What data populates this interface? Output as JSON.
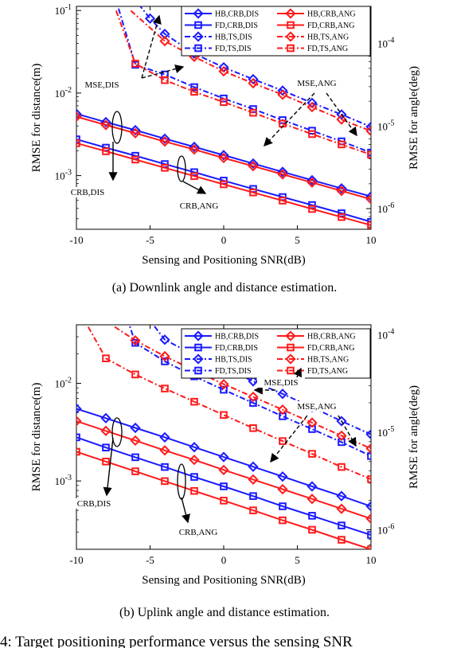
{
  "figure_caption": "4: Target positioning performance versus the sensing SNR",
  "colors": {
    "blue": "#1a1aff",
    "red": "#ff1a1a",
    "black": "#000000"
  },
  "chart_data": [
    {
      "id": "a",
      "type": "line",
      "caption": "(a)  Downlink angle and distance estimation.",
      "xlabel": "Sensing and Positioning SNR(dB)",
      "ylabel_left": "RMSE for distance(m)",
      "ylabel_right": "RMSE for angle(deg)",
      "xlim": [
        -10,
        10
      ],
      "x_ticks": [
        -10,
        -5,
        0,
        5,
        10
      ],
      "y_scale": "log",
      "ylim_left_log10": [
        -3.65,
        -0.95
      ],
      "ylim_right_log10": [
        -6.25,
        -3.55
      ],
      "yticks_left": [
        {
          "exp": -1,
          "label": "10",
          "sup": "-1"
        },
        {
          "exp": -2,
          "label": "10",
          "sup": "-2"
        },
        {
          "exp": -3,
          "label": "10",
          "sup": "-3"
        }
      ],
      "yticks_right": [
        {
          "exp": -4,
          "label": "10",
          "sup": "-4"
        },
        {
          "exp": -5,
          "label": "10",
          "sup": "-5"
        },
        {
          "exp": -6,
          "label": "10",
          "sup": "-6"
        }
      ],
      "legend": {
        "placement": "top-right",
        "left_column": [
          "HB,CRB,DIS",
          "FD,CRB,DIS",
          "HB,TS,DIS",
          "FD,TS,DIS"
        ],
        "right_column": [
          "HB,CRB,ANG",
          "FD,CRB,ANG",
          "HB,TS,ANG",
          "FD,TS,ANG"
        ]
      },
      "series": [
        {
          "name": "HB,CRB,DIS",
          "color": "blue",
          "marker": "diamond",
          "style": "solid",
          "axis": "left",
          "x": [
            -10,
            -8,
            -6,
            -4,
            -2,
            0,
            2,
            4,
            6,
            8,
            10
          ],
          "y": [
            0.0056,
            0.00445,
            0.00355,
            0.0028,
            0.00223,
            0.00177,
            0.0014,
            0.00111,
            0.00088,
            0.0007,
            0.00056
          ]
        },
        {
          "name": "FD,CRB,DIS",
          "color": "blue",
          "marker": "square",
          "style": "solid",
          "axis": "left",
          "x": [
            -10,
            -8,
            -6,
            -4,
            -2,
            0,
            2,
            4,
            6,
            8,
            10
          ],
          "y": [
            0.00275,
            0.00218,
            0.00174,
            0.00138,
            0.0011,
            0.00087,
            0.00069,
            0.00055,
            0.00044,
            0.00035,
            0.000275
          ]
        },
        {
          "name": "HB,TS,DIS",
          "color": "blue",
          "marker": "diamond",
          "style": "dashdot",
          "axis": "left",
          "x": [
            -6.8,
            -5,
            -4,
            -2,
            0,
            2,
            4,
            6,
            8,
            10
          ],
          "y": [
            0.2,
            0.08,
            0.052,
            0.03,
            0.0205,
            0.0147,
            0.0107,
            0.0076,
            0.0055,
            0.0039
          ]
        },
        {
          "name": "FD,TS,DIS",
          "color": "blue",
          "marker": "square",
          "style": "dashdot",
          "axis": "left",
          "x": [
            -7.6,
            -6,
            -4,
            -2,
            0,
            2,
            4,
            6,
            8,
            10
          ],
          "y": [
            0.2,
            0.022,
            0.0168,
            0.0118,
            0.0086,
            0.0064,
            0.0047,
            0.0035,
            0.0026,
            0.0019
          ]
        },
        {
          "name": "HB,CRB,ANG",
          "color": "red",
          "marker": "diamond",
          "style": "solid",
          "axis": "right",
          "x": [
            -10,
            -8,
            -6,
            -4,
            -2,
            0,
            2,
            4,
            6,
            8,
            10
          ],
          "y": [
            1.3e-05,
            1.03e-05,
            8.2e-06,
            6.5e-06,
            5.2e-06,
            4.1e-06,
            3.27e-06,
            2.6e-06,
            2.07e-06,
            1.64e-06,
            1.3e-06
          ]
        },
        {
          "name": "FD,CRB,ANG",
          "color": "red",
          "marker": "square",
          "style": "solid",
          "axis": "right",
          "x": [
            -10,
            -8,
            -6,
            -4,
            -2,
            0,
            2,
            4,
            6,
            8,
            10
          ],
          "y": [
            6.2e-06,
            4.95e-06,
            3.93e-06,
            3.12e-06,
            2.48e-06,
            1.97e-06,
            1.57e-06,
            1.25e-06,
            9.9e-07,
            7.9e-07,
            6.3e-07
          ]
        },
        {
          "name": "HB,TS,ANG",
          "color": "red",
          "marker": "diamond",
          "style": "dashdot",
          "axis": "right",
          "x": [
            -6.3,
            -4,
            -2,
            0,
            2,
            4,
            6,
            8,
            10
          ],
          "y": [
            0.00025,
            0.000107,
            6.9e-05,
            4.6e-05,
            3.3e-05,
            2.4e-05,
            1.7e-05,
            1.2e-05,
            8.7e-06
          ]
        },
        {
          "name": "FD,TS,ANG",
          "color": "red",
          "marker": "square",
          "style": "dashdot",
          "axis": "right",
          "x": [
            -7.3,
            -6,
            -4,
            -2,
            0,
            2,
            4,
            6,
            8,
            10
          ],
          "y": [
            0.00025,
            5.7e-05,
            3.6e-05,
            2.6e-05,
            1.95e-05,
            1.45e-05,
            1.07e-05,
            8e-06,
            6e-06,
            4.5e-06
          ]
        }
      ],
      "annotations": [
        "MSE,DIS",
        "MSE,ANG",
        "CRB,DIS",
        "CRB,ANG"
      ]
    },
    {
      "id": "b",
      "type": "line",
      "caption": "(b)  Uplink angle and distance estimation.",
      "xlabel": "Sensing and Positioning SNR(dB)",
      "ylabel_left": "RMSE for distance(m)",
      "ylabel_right": "RMSE for angle(deg)",
      "xlim": [
        -10,
        10
      ],
      "x_ticks": [
        -10,
        -5,
        0,
        5,
        10
      ],
      "y_scale": "log",
      "ylim_left_log10": [
        -3.7,
        -1.4
      ],
      "ylim_right_log10": [
        -6.2,
        -3.9
      ],
      "yticks_left": [
        {
          "exp": -2,
          "label": "10",
          "sup": "-2"
        },
        {
          "exp": -3,
          "label": "10",
          "sup": "-3"
        }
      ],
      "yticks_right": [
        {
          "exp": -4,
          "label": "10",
          "sup": "-4"
        },
        {
          "exp": -5,
          "label": "10",
          "sup": "-5"
        },
        {
          "exp": -6,
          "label": "10",
          "sup": "-6"
        }
      ],
      "legend": {
        "placement": "top-right",
        "left_column": [
          "HB,CRB,DIS",
          "FD,CRB,DIS",
          "HB,TS,DIS",
          "FD,TS,DIS"
        ],
        "right_column": [
          "HB,CRB,ANG",
          "FD,CRB,ANG",
          "HB,TS,ANG",
          "FD,TS,ANG"
        ]
      },
      "series": [
        {
          "name": "HB,CRB,DIS",
          "color": "blue",
          "marker": "diamond",
          "style": "solid",
          "axis": "left",
          "x": [
            -10,
            -8,
            -6,
            -4,
            -2,
            0,
            2,
            4,
            6,
            8,
            10
          ],
          "y": [
            0.0055,
            0.0044,
            0.0035,
            0.0028,
            0.00222,
            0.00176,
            0.0014,
            0.00111,
            0.00088,
            0.0007,
            0.00055
          ]
        },
        {
          "name": "FD,CRB,DIS",
          "color": "blue",
          "marker": "square",
          "style": "solid",
          "axis": "left",
          "x": [
            -10,
            -8,
            -6,
            -4,
            -2,
            0,
            2,
            4,
            6,
            8,
            10
          ],
          "y": [
            0.0028,
            0.0022,
            0.00175,
            0.00139,
            0.0011,
            0.00088,
            0.0007,
            0.00055,
            0.00044,
            0.00035,
            0.00028
          ]
        },
        {
          "name": "HB,TS,DIS",
          "color": "blue",
          "marker": "diamond",
          "style": "dashdot",
          "axis": "left",
          "x": [
            -5.7,
            -4,
            -2,
            0,
            2,
            4,
            6,
            8,
            10
          ],
          "y": [
            0.06,
            0.028,
            0.0195,
            0.0145,
            0.0105,
            0.0078,
            0.0057,
            0.0041,
            0.003
          ]
        },
        {
          "name": "FD,TS,DIS",
          "color": "blue",
          "marker": "square",
          "style": "dashdot",
          "axis": "left",
          "x": [
            -6.8,
            -6,
            -4,
            -2,
            0,
            2,
            4,
            6,
            8,
            10
          ],
          "y": [
            0.06,
            0.026,
            0.0168,
            0.0118,
            0.0086,
            0.0063,
            0.0046,
            0.0034,
            0.0025,
            0.0018
          ]
        },
        {
          "name": "HB,CRB,ANG",
          "color": "red",
          "marker": "diamond",
          "style": "solid",
          "axis": "right",
          "x": [
            -10,
            -8,
            -6,
            -4,
            -2,
            0,
            2,
            4,
            6,
            8,
            10
          ],
          "y": [
            1.3e-05,
            1.03e-05,
            8.2e-06,
            6.5e-06,
            5.2e-06,
            4.1e-06,
            3.27e-06,
            2.6e-06,
            2.07e-06,
            1.64e-06,
            1.3e-06
          ]
        },
        {
          "name": "FD,CRB,ANG",
          "color": "red",
          "marker": "square",
          "style": "solid",
          "axis": "right",
          "x": [
            -10,
            -8,
            -6,
            -4,
            -2,
            0,
            2,
            4,
            6,
            8,
            10
          ],
          "y": [
            6.3e-06,
            5e-06,
            3.97e-06,
            3.15e-06,
            2.5e-06,
            1.99e-06,
            1.58e-06,
            1.25e-06,
            1e-06,
            7.9e-07,
            6.3e-07
          ]
        },
        {
          "name": "HB,TS,ANG",
          "color": "red",
          "marker": "diamond",
          "style": "dashdot",
          "axis": "right",
          "x": [
            -7.4,
            -6,
            -4,
            -2,
            0,
            2,
            4,
            6,
            8,
            10
          ],
          "y": [
            0.00012,
            8.7e-05,
            6e-05,
            4.3e-05,
            3.1e-05,
            2.3e-05,
            1.7e-05,
            1.25e-05,
            9.2e-06,
            6.8e-06
          ]
        },
        {
          "name": "FD,TS,ANG",
          "color": "red",
          "marker": "square",
          "style": "dashdot",
          "axis": "right",
          "x": [
            -9.2,
            -8,
            -6,
            -4,
            -2,
            0,
            2,
            4,
            6,
            8,
            10
          ],
          "y": [
            0.00012,
            5.7e-05,
            3.9e-05,
            2.8e-05,
            2.05e-05,
            1.5e-05,
            1.1e-05,
            8.1e-06,
            6e-06,
            4.4e-06,
            3.3e-06
          ]
        }
      ],
      "annotations": [
        "MSE,DIS",
        "MSE,ANG",
        "CRB,DIS",
        "CRB,ANG"
      ]
    }
  ]
}
